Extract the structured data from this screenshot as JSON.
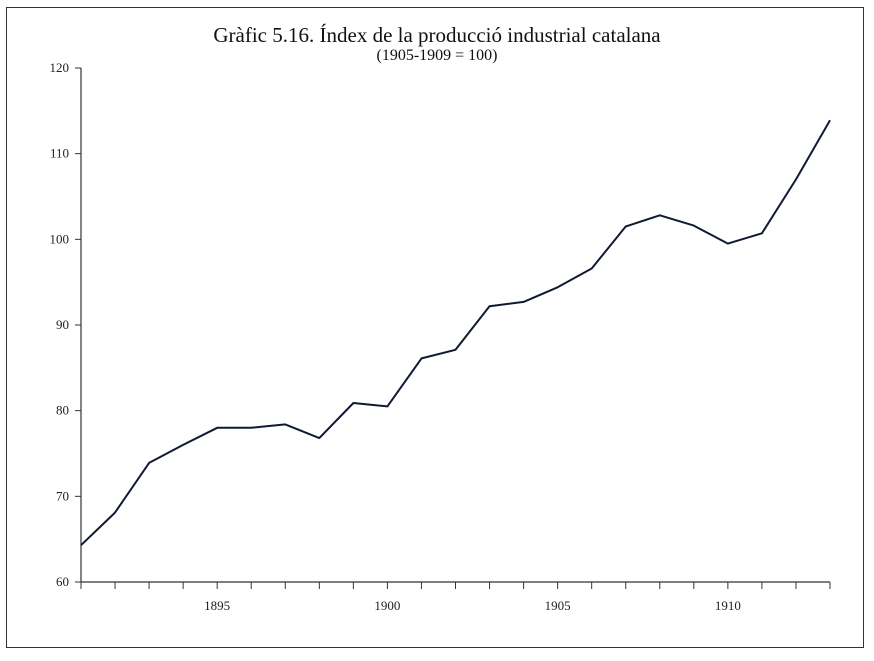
{
  "chart_data": {
    "type": "line",
    "title": "Gràfic 5.16. Índex de la producció industrial catalana",
    "subtitle": "(1905-1909 = 100)",
    "xlabel": "",
    "ylabel": "",
    "xlim": [
      1891,
      1913
    ],
    "ylim": [
      60,
      120
    ],
    "yticks": [
      60,
      70,
      80,
      90,
      100,
      110,
      120
    ],
    "xticks_labeled": [
      1895,
      1900,
      1905,
      1910
    ],
    "grid": false,
    "legend": "none",
    "series": [
      {
        "x": [
          1891,
          1892,
          1893,
          1894,
          1895,
          1896,
          1897,
          1898,
          1899,
          1900,
          1901,
          1902,
          1903,
          1904,
          1905,
          1906,
          1907,
          1908,
          1909,
          1910,
          1911,
          1912,
          1913
        ],
        "values": [
          64.3,
          68.1,
          73.9,
          76.0,
          78.0,
          78.0,
          78.4,
          76.8,
          80.9,
          80.5,
          86.1,
          87.1,
          92.2,
          92.7,
          94.4,
          96.6,
          101.5,
          102.8,
          101.6,
          99.5,
          100.7,
          107.0,
          113.9
        ]
      }
    ],
    "colors": {
      "line": "#111a33",
      "axis": "#333333"
    }
  }
}
